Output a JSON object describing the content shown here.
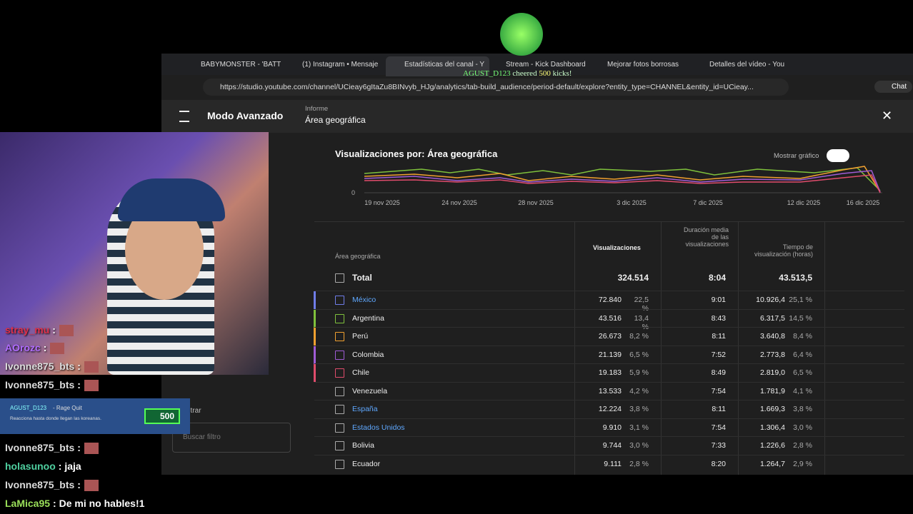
{
  "browser": {
    "tabs": [
      "BABYMONSTER - 'BATT",
      "(1) Instagram • Mensaje",
      "Estadísticas del canal - Y",
      "Stream - Kick Dashboard",
      "Mejorar fotos borrosas",
      "Detalles del vídeo - You"
    ],
    "url": "https://studio.youtube.com/channel/UCieay6gItaZu8BINvyb_HJg/analytics/tab-build_audience/period-default/explore?entity_type=CHANNEL&entity_id=UCieay...",
    "chat_button": "Chat"
  },
  "alert_banner": {
    "user": "AGUST_D123",
    "action": "cheered",
    "amount": "500",
    "unit": "kicks!"
  },
  "studio": {
    "mode": "Modo Avanzado",
    "report_label": "Informe",
    "report_value": "Área geográfica",
    "chart_title": "Visualizaciones por: Área geográfica",
    "show_chart": "Mostrar gráfico",
    "chart_x_labels": [
      "19 nov 2025",
      "24 nov 2025",
      "28 nov 2025",
      "3 dic 2025",
      "7 dic 2025",
      "12 dic 2025",
      "16 dic 2025"
    ],
    "chart_y_label": "0",
    "filter_label": "Filtrar",
    "filter_placeholder": "Buscar filtro",
    "table": {
      "headers": [
        "Área geográfica",
        "Visualizaciones",
        "Duración media de las visualizaciones",
        "Tiempo de visualización (horas)"
      ],
      "total": [
        "Total",
        "324.514",
        "8:04",
        "43.513,5"
      ],
      "rows": [
        [
          "México",
          "72.840",
          "22,5 %",
          "9:01",
          "10.926,4",
          "25,1 %"
        ],
        [
          "Argentina",
          "43.516",
          "13,4 %",
          "8:43",
          "6.317,5",
          "14,5 %"
        ],
        [
          "Perú",
          "26.673",
          "8,2 %",
          "8:11",
          "3.640,8",
          "8,4 %"
        ],
        [
          "Colombia",
          "21.139",
          "6,5 %",
          "7:52",
          "2.773,8",
          "6,4 %"
        ],
        [
          "Chile",
          "19.183",
          "5,9 %",
          "8:49",
          "2.819,0",
          "6,5 %"
        ],
        [
          "Venezuela",
          "13.533",
          "4,2 %",
          "7:54",
          "1.781,9",
          "4,1 %"
        ],
        [
          "España",
          "12.224",
          "3,8 %",
          "8:11",
          "1.669,3",
          "3,8 %"
        ],
        [
          "Estados Unidos",
          "9.910",
          "3,1 %",
          "7:54",
          "1.306,4",
          "3,0 %"
        ],
        [
          "Bolivia",
          "9.744",
          "3,0 %",
          "7:33",
          "1.226,6",
          "2,8 %"
        ],
        [
          "Ecuador",
          "9.111",
          "2,8 %",
          "8:20",
          "1.264,7",
          "2,9 %"
        ]
      ]
    }
  },
  "kick_alert": {
    "user": "AGUST_D123",
    "label": "- Rage Quit",
    "message": "Reacciona hasta donde llegan las koreanas.",
    "amount": "500"
  },
  "chat": [
    {
      "user": "stray_mu",
      "text": ":"
    },
    {
      "user": "AOrozc",
      "text": ":"
    },
    {
      "user": "Ivonne875_bts",
      "text": ":"
    },
    {
      "user": "Ivonne875_bts",
      "text": ":"
    },
    {
      "user": "Ivonne875_bts",
      "text": ":"
    },
    {
      "user": "holasunoo",
      "text": ": jaja"
    },
    {
      "user": "Ivonne875_bts",
      "text": ":"
    },
    {
      "user": "LaMica95",
      "text": ": De mi no hables!1"
    }
  ]
}
